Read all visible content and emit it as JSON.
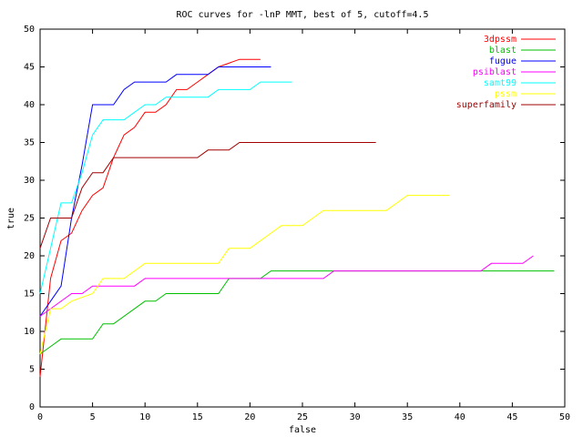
{
  "chart_data": {
    "type": "line",
    "title": "ROC curves for -lnP MMT, best of 5, cutoff=4.5",
    "x_label": "false",
    "y_label": "true",
    "xlim": [
      0,
      50
    ],
    "ylim": [
      0,
      50
    ],
    "xticks": [
      0,
      5,
      10,
      15,
      20,
      25,
      30,
      35,
      40,
      45,
      50
    ],
    "yticks": [
      0,
      5,
      10,
      15,
      20,
      25,
      30,
      35,
      40,
      45,
      50
    ],
    "legend": "upper right",
    "series": [
      {
        "name": "3dpssm",
        "color": "#ff0000",
        "x": [
          0,
          1,
          2,
          3,
          4,
          5,
          6,
          7,
          8,
          9,
          10,
          11,
          12,
          13,
          14,
          15,
          16,
          17,
          19,
          21
        ],
        "values": [
          4,
          17,
          22,
          23,
          26,
          28,
          29,
          33,
          36,
          37,
          39,
          39,
          40,
          42,
          42,
          43,
          44,
          45,
          46,
          46
        ]
      },
      {
        "name": "blast",
        "color": "#00c000",
        "x": [
          0,
          1,
          2,
          5,
          6,
          7,
          10,
          11,
          12,
          17,
          18,
          21,
          22,
          49
        ],
        "values": [
          7,
          8,
          9,
          9,
          11,
          11,
          14,
          14,
          15,
          15,
          17,
          17,
          18,
          18
        ]
      },
      {
        "name": "fugue",
        "color": "#0000ff",
        "x": [
          0,
          1,
          2,
          3,
          4,
          5,
          7,
          8,
          9,
          12,
          13,
          16,
          17,
          22
        ],
        "values": [
          12,
          14,
          16,
          25,
          32,
          40,
          40,
          42,
          43,
          43,
          44,
          44,
          45,
          45
        ]
      },
      {
        "name": "psiblast",
        "color": "#ff00ff",
        "x": [
          0,
          1,
          3,
          4,
          5,
          9,
          10,
          27,
          28,
          42,
          43,
          46,
          47
        ],
        "values": [
          12,
          13,
          15,
          15,
          16,
          16,
          17,
          17,
          18,
          18,
          19,
          19,
          20
        ]
      },
      {
        "name": "samt99",
        "color": "#00ffff",
        "x": [
          0,
          1,
          2,
          3,
          4,
          5,
          6,
          8,
          10,
          11,
          12,
          16,
          17,
          20,
          21,
          24
        ],
        "values": [
          15,
          21,
          27,
          27,
          31,
          36,
          38,
          38,
          40,
          40,
          41,
          41,
          42,
          42,
          43,
          43
        ]
      },
      {
        "name": "pssm",
        "color": "#ffff00",
        "x": [
          0,
          1,
          2,
          3,
          5,
          6,
          8,
          10,
          17,
          18,
          20,
          23,
          25,
          27,
          33,
          35,
          39
        ],
        "values": [
          7,
          13,
          13,
          14,
          15,
          17,
          17,
          19,
          19,
          21,
          21,
          24,
          24,
          26,
          26,
          28,
          28
        ]
      },
      {
        "name": "superfamily",
        "color": "#a00000",
        "x": [
          0,
          1,
          3,
          4,
          5,
          6,
          7,
          15,
          16,
          18,
          19,
          32
        ],
        "values": [
          21,
          25,
          25,
          29,
          31,
          31,
          33,
          33,
          34,
          34,
          35,
          35
        ]
      }
    ]
  }
}
